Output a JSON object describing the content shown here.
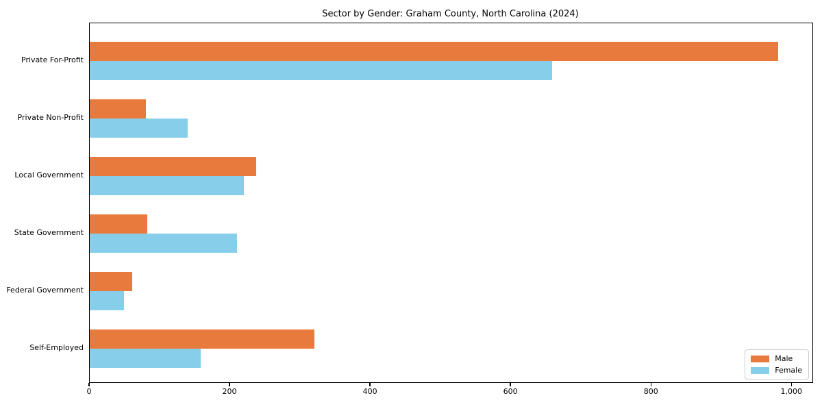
{
  "chart_data": {
    "type": "bar",
    "orientation": "horizontal",
    "title": "Sector by Gender: Graham County, North Carolina (2024)",
    "categories": [
      "Private For-Profit",
      "Private Non-Profit",
      "Local Government",
      "State Government",
      "Federal Government",
      "Self-Employed"
    ],
    "series": [
      {
        "name": "Male",
        "color": "#E87A3D",
        "values": [
          980,
          80,
          237,
          82,
          60,
          320
        ]
      },
      {
        "name": "Female",
        "color": "#87CEEB",
        "values": [
          658,
          139,
          219,
          210,
          49,
          158
        ]
      }
    ],
    "xlabel": "",
    "ylabel": "",
    "xlim": [
      0,
      1029
    ],
    "x_ticks": [
      0,
      200,
      400,
      600,
      800,
      1000
    ],
    "x_tick_labels": [
      "0",
      "200",
      "400",
      "600",
      "800",
      "1,000"
    ],
    "grid": false,
    "legend_position": "lower right",
    "background": "#ffffff"
  }
}
